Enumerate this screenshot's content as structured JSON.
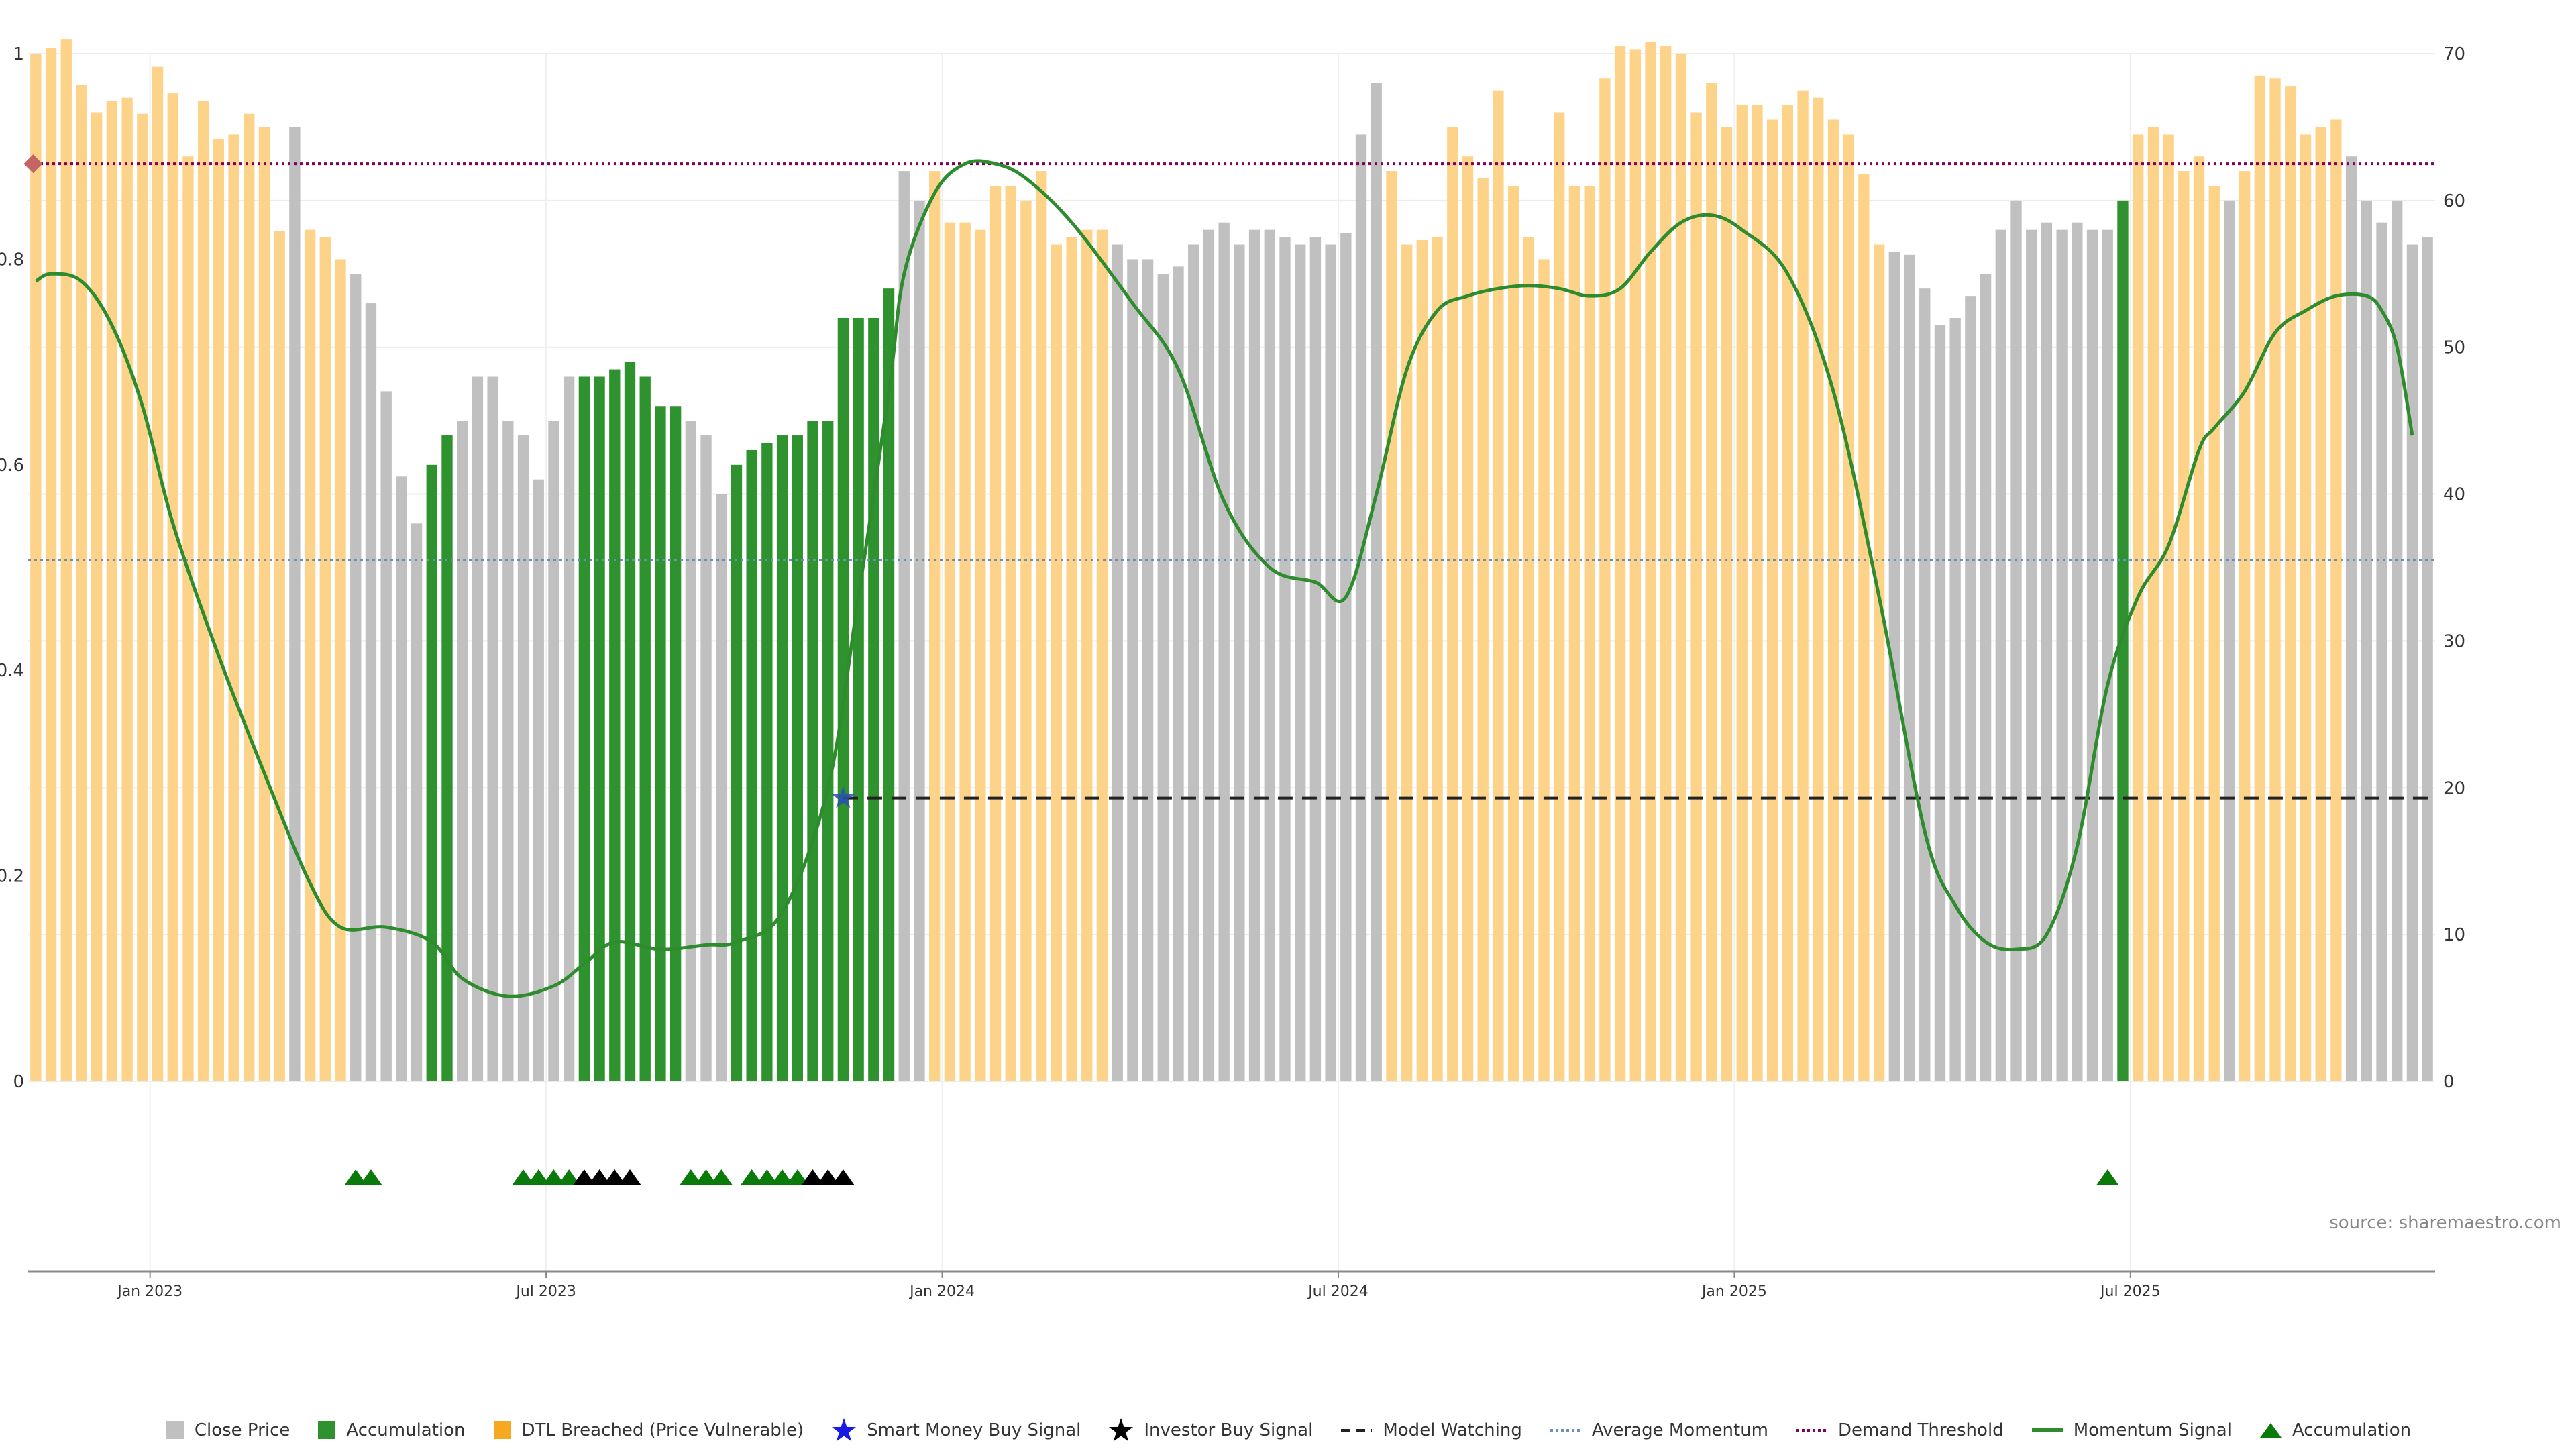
{
  "colors": {
    "close": "#c0c0c0",
    "accumulation": "#2e922e",
    "dtl": "#fdd38a",
    "momentum": "#2e8b2e",
    "avg_momentum": "#6a8fb8",
    "demand": "#800060",
    "model_watching": "#222222",
    "marker_diamond": "#c46464"
  },
  "source_text": "source: sharemaestro.com",
  "legend": [
    {
      "key": "close",
      "label": "Close Price",
      "icon": "grey-square-icon"
    },
    {
      "key": "accumulation",
      "label": "Accumulation",
      "icon": "green-square-icon"
    },
    {
      "key": "dtl",
      "label": "DTL Breached (Price Vulnerable)",
      "icon": "orange-square-icon"
    },
    {
      "key": "smart_money",
      "label": "Smart Money Buy Signal",
      "icon": "blue-star-icon"
    },
    {
      "key": "investor",
      "label": "Investor Buy Signal",
      "icon": "black-star-icon"
    },
    {
      "key": "model",
      "label": "Model Watching",
      "icon": "dashed-line-icon"
    },
    {
      "key": "avg",
      "label": "Average Momentum",
      "icon": "dotted-blue-line-icon"
    },
    {
      "key": "demand",
      "label": "Demand Threshold",
      "icon": "dotted-purple-line-icon"
    },
    {
      "key": "momentum",
      "label": "Momentum Signal",
      "icon": "green-line-icon"
    },
    {
      "key": "acc_tri",
      "label": "Accumulation",
      "icon": "green-triangle-icon"
    }
  ],
  "chart_data": {
    "type": "bar",
    "left_axis": {
      "ylim": [
        0,
        1
      ],
      "ticks": [
        "0",
        "0.2",
        "0.4",
        "0.6",
        "0.8",
        "1"
      ]
    },
    "right_axis": {
      "ylim": [
        0,
        70
      ],
      "ticks": [
        "0",
        "10",
        "20",
        "30",
        "40",
        "50",
        "60",
        "70"
      ]
    },
    "x_ticks": [
      {
        "label": "Jan 2023",
        "index": 7.5
      },
      {
        "label": "Jul 2023",
        "index": 33.5
      },
      {
        "label": "Jan 2024",
        "index": 59.5
      },
      {
        "label": "Jul 2024",
        "index": 85.5
      },
      {
        "label": "Jan 2025",
        "index": 111.5
      },
      {
        "label": "Jul 2025",
        "index": 137.5
      }
    ],
    "bars": {
      "note_types": "d = DTL breached, c = close price, a = accumulation",
      "types": "dddddddddddddddddcdddcccccaaccccccccaaaaaaacccaaaaaaaaaaaccddddddddddddccccccccccccccccccdddddddddddddddddddddddddddddddddcccccccccccccccaddddddcdddddddccccc",
      "values": [
        70.0,
        70.4,
        71.0,
        67.9,
        66.0,
        66.8,
        67.0,
        65.9,
        69.1,
        67.3,
        63.0,
        66.8,
        64.2,
        64.5,
        65.9,
        65.0,
        57.9,
        65.0,
        58.0,
        57.5,
        56.0,
        55.0,
        53.0,
        47.0,
        41.2,
        38.0,
        42.0,
        44.0,
        45.0,
        48.0,
        48.0,
        45.0,
        44.0,
        41.0,
        45.0,
        48.0,
        48.0,
        48.0,
        48.5,
        49.0,
        48.0,
        46.0,
        46.0,
        45.0,
        44.0,
        40.0,
        42.0,
        43.0,
        43.5,
        44.0,
        44.0,
        45.0,
        45.0,
        52.0,
        52.0,
        52.0,
        54.0,
        62.0,
        60.0,
        62.0,
        58.5,
        58.5,
        58.0,
        61.0,
        61.0,
        60.0,
        62.0,
        57.0,
        57.5,
        58.0,
        58.0,
        57.0,
        56.0,
        56.0,
        55.0,
        55.5,
        57.0,
        58.0,
        58.5,
        57.0,
        58.0,
        58.0,
        57.5,
        57.0,
        57.5,
        57.0,
        57.8,
        64.5,
        68.0,
        62.0,
        57.0,
        57.3,
        57.5,
        65.0,
        63.0,
        61.5,
        67.5,
        61.0,
        57.5,
        56.0,
        66.0,
        61.0,
        61.0,
        68.3,
        70.5,
        70.3,
        70.8,
        70.5,
        70.0,
        66.0,
        68.0,
        65.0,
        66.5,
        66.5,
        65.5,
        66.5,
        67.5,
        67.0,
        65.5,
        64.5,
        61.8,
        57.0,
        56.5,
        56.3,
        54.0,
        51.5,
        52.0,
        53.5,
        55.0,
        58.0,
        60.0,
        58.0,
        58.5,
        58.0,
        58.5,
        58.0,
        58.0,
        60.0,
        64.5,
        65.0,
        64.5,
        62.0,
        63.0,
        61.0,
        60.0,
        62.0,
        68.5,
        68.3,
        67.8,
        64.5,
        65.0,
        65.5,
        63.0,
        60.0,
        58.5,
        60.0,
        57.0,
        57.5
      ]
    },
    "momentum": {
      "x": [
        0,
        1,
        3,
        5,
        7,
        9,
        12,
        15,
        18,
        20,
        23,
        26,
        28,
        31,
        34,
        36,
        38,
        41,
        44,
        46,
        49,
        52,
        54,
        56,
        57,
        59,
        61,
        63,
        65,
        68,
        72,
        75,
        78,
        81,
        84,
        86,
        88,
        90,
        92,
        94,
        96,
        98,
        100,
        102,
        104,
        106,
        108,
        110,
        112,
        115,
        118,
        121,
        124,
        126,
        128,
        130,
        132,
        134,
        136,
        138,
        140,
        142,
        143,
        145,
        147,
        149,
        151,
        153,
        154,
        155,
        156
      ],
      "y": [
        54.5,
        55.0,
        54.5,
        51.5,
        46.0,
        38.0,
        29.0,
        21.0,
        13.5,
        10.5,
        10.5,
        9.5,
        7.0,
        5.8,
        6.5,
        8.0,
        9.5,
        9.0,
        9.3,
        9.5,
        11.5,
        20.0,
        33.0,
        47.0,
        55.0,
        60.5,
        62.5,
        62.5,
        61.5,
        58.5,
        53.0,
        48.5,
        39.5,
        35.0,
        34.0,
        33.0,
        40.0,
        48.5,
        52.5,
        53.5,
        54.0,
        54.2,
        54.0,
        53.5,
        54.0,
        56.5,
        58.5,
        59.0,
        58.0,
        55.0,
        47.0,
        33.0,
        17.0,
        12.0,
        9.5,
        9.0,
        10.0,
        16.0,
        27.0,
        33.0,
        36.5,
        43.0,
        44.5,
        47.0,
        51.0,
        52.5,
        53.5,
        53.5,
        52.5,
        50.0,
        44.0
      ]
    },
    "average_momentum": 35.5,
    "demand_threshold": 62.5,
    "model_watching": {
      "start_index": 53,
      "value": 19.3
    },
    "smart_money_signals": [
      {
        "index": 53,
        "value": 19.3
      }
    ],
    "accumulation_markers": [
      21,
      22,
      32,
      33,
      34,
      35,
      43,
      44,
      45,
      47,
      48,
      49,
      50,
      136
    ],
    "investor_buy_markers": [
      36,
      37,
      38,
      39,
      51,
      52,
      53
    ],
    "demand_marker": {
      "index": 0,
      "value": 62.5
    }
  }
}
